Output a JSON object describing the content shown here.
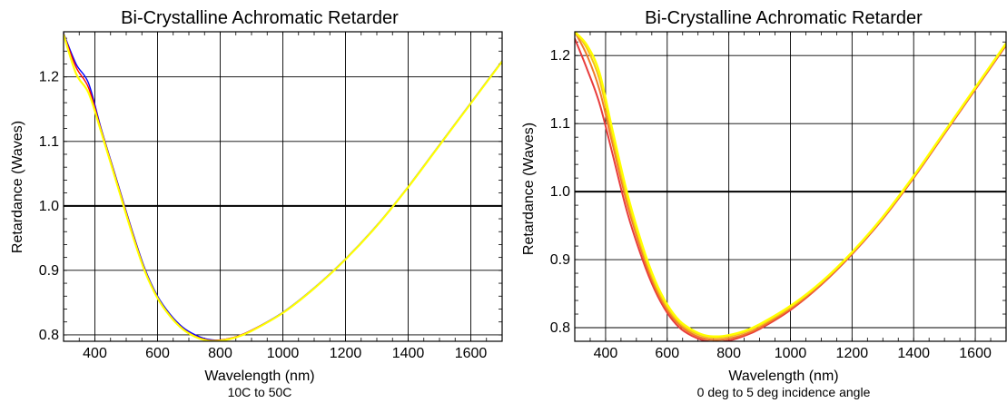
{
  "chart_data": [
    {
      "type": "line",
      "title": "Bi-Crystalline Achromatic Retarder",
      "xlabel": "Wavelength (nm)",
      "ylabel": "Retardance (Waves)",
      "caption": "10C to 50C",
      "xlim": [
        300,
        1700
      ],
      "ylim": [
        0.79,
        1.27
      ],
      "xticks": [
        400,
        600,
        800,
        1000,
        1200,
        1400,
        1600
      ],
      "xtick_labels": [
        "400",
        "600",
        "800",
        "1000",
        "1200",
        "1400",
        "1600"
      ],
      "yticks": [
        0.8,
        0.9,
        1.0,
        1.1,
        1.2
      ],
      "ytick_labels": [
        "0.8",
        "0.9",
        "1.0",
        "1.1",
        "1.2"
      ],
      "reference_line": 1.0,
      "grid": true,
      "series": [
        {
          "color": "#0000ff",
          "width": 1.4,
          "x": [
            300,
            340,
            380,
            420,
            470,
            520,
            560,
            600,
            640,
            680,
            720,
            760,
            800,
            850,
            900,
            1000,
            1100,
            1200,
            1300,
            1400,
            1500,
            1600,
            1700
          ],
          "y": [
            1.268,
            1.22,
            1.19,
            1.12,
            1.04,
            0.96,
            0.902,
            0.86,
            0.832,
            0.812,
            0.8,
            0.793,
            0.792,
            0.797,
            0.807,
            0.835,
            0.873,
            0.918,
            0.97,
            1.03,
            1.095,
            1.16,
            1.225
          ]
        },
        {
          "color": "#ff0000",
          "width": 1.4,
          "x": [
            300,
            340,
            380,
            420,
            470,
            520,
            560,
            600,
            640,
            680,
            720,
            760,
            800,
            850,
            900,
            1000,
            1100,
            1200,
            1300,
            1400,
            1500,
            1600,
            1700
          ],
          "y": [
            1.267,
            1.215,
            1.183,
            1.118,
            1.038,
            0.958,
            0.9,
            0.858,
            0.83,
            0.81,
            0.798,
            0.792,
            0.792,
            0.797,
            0.807,
            0.834,
            0.872,
            0.917,
            0.969,
            1.029,
            1.094,
            1.159,
            1.224
          ]
        },
        {
          "color": "#ffff00",
          "width": 2.2,
          "x": [
            300,
            340,
            380,
            420,
            470,
            520,
            560,
            600,
            640,
            680,
            720,
            760,
            800,
            850,
            900,
            1000,
            1100,
            1200,
            1300,
            1400,
            1500,
            1600,
            1700
          ],
          "y": [
            1.266,
            1.205,
            1.175,
            1.115,
            1.035,
            0.955,
            0.898,
            0.857,
            0.829,
            0.809,
            0.797,
            0.791,
            0.791,
            0.796,
            0.806,
            0.834,
            0.872,
            0.917,
            0.969,
            1.029,
            1.094,
            1.159,
            1.224
          ]
        }
      ]
    },
    {
      "type": "line",
      "title": "Bi-Crystalline Achromatic Retarder",
      "xlabel": "Wavelength (nm)",
      "ylabel": "Retardance (Waves)",
      "caption": "0 deg to 5 deg incidence angle",
      "xlim": [
        300,
        1700
      ],
      "ylim": [
        0.78,
        1.235
      ],
      "xticks": [
        400,
        600,
        800,
        1000,
        1200,
        1400,
        1600
      ],
      "xtick_labels": [
        "400",
        "600",
        "800",
        "1000",
        "1200",
        "1400",
        "1600"
      ],
      "yticks": [
        0.8,
        0.9,
        1.0,
        1.1,
        1.2
      ],
      "ytick_labels": [
        "0.8",
        "0.9",
        "1.0",
        "1.1",
        "1.2"
      ],
      "reference_line": 1.0,
      "grid": true,
      "series": [
        {
          "color": "#e83c3c",
          "width": 2.0,
          "x": [
            300,
            340,
            380,
            420,
            470,
            520,
            560,
            600,
            640,
            680,
            720,
            760,
            800,
            850,
            900,
            1000,
            1100,
            1200,
            1300,
            1400,
            1500,
            1600,
            1700
          ],
          "y": [
            1.225,
            1.18,
            1.13,
            1.06,
            0.97,
            0.9,
            0.855,
            0.822,
            0.8,
            0.788,
            0.781,
            0.779,
            0.781,
            0.788,
            0.798,
            0.826,
            0.863,
            0.908,
            0.96,
            1.02,
            1.085,
            1.15,
            1.215
          ]
        },
        {
          "color": "#f07a2a",
          "width": 2.0,
          "x": [
            300,
            340,
            380,
            420,
            470,
            520,
            560,
            600,
            640,
            680,
            720,
            760,
            800,
            850,
            900,
            1000,
            1100,
            1200,
            1300,
            1400,
            1500,
            1600,
            1700
          ],
          "y": [
            1.235,
            1.2,
            1.15,
            1.075,
            0.982,
            0.908,
            0.86,
            0.826,
            0.804,
            0.791,
            0.784,
            0.782,
            0.784,
            0.79,
            0.8,
            0.828,
            0.864,
            0.909,
            0.961,
            1.021,
            1.086,
            1.151,
            1.216
          ]
        },
        {
          "color": "#f5c21a",
          "width": 2.0,
          "x": [
            300,
            340,
            380,
            420,
            470,
            520,
            560,
            600,
            640,
            680,
            720,
            760,
            800,
            850,
            900,
            1000,
            1100,
            1200,
            1300,
            1400,
            1500,
            1600,
            1700
          ],
          "y": [
            1.235,
            1.21,
            1.165,
            1.085,
            0.99,
            0.914,
            0.865,
            0.83,
            0.807,
            0.794,
            0.787,
            0.785,
            0.787,
            0.793,
            0.803,
            0.83,
            0.866,
            0.91,
            0.962,
            1.022,
            1.087,
            1.152,
            1.217
          ]
        },
        {
          "color": "#ffff00",
          "width": 2.4,
          "x": [
            300,
            340,
            380,
            420,
            470,
            520,
            560,
            600,
            640,
            680,
            720,
            760,
            800,
            850,
            900,
            1000,
            1100,
            1200,
            1300,
            1400,
            1500,
            1600,
            1700
          ],
          "y": [
            1.235,
            1.215,
            1.175,
            1.095,
            0.998,
            0.92,
            0.87,
            0.834,
            0.81,
            0.797,
            0.789,
            0.787,
            0.789,
            0.795,
            0.805,
            0.832,
            0.867,
            0.911,
            0.963,
            1.023,
            1.088,
            1.153,
            1.218
          ]
        }
      ]
    }
  ]
}
